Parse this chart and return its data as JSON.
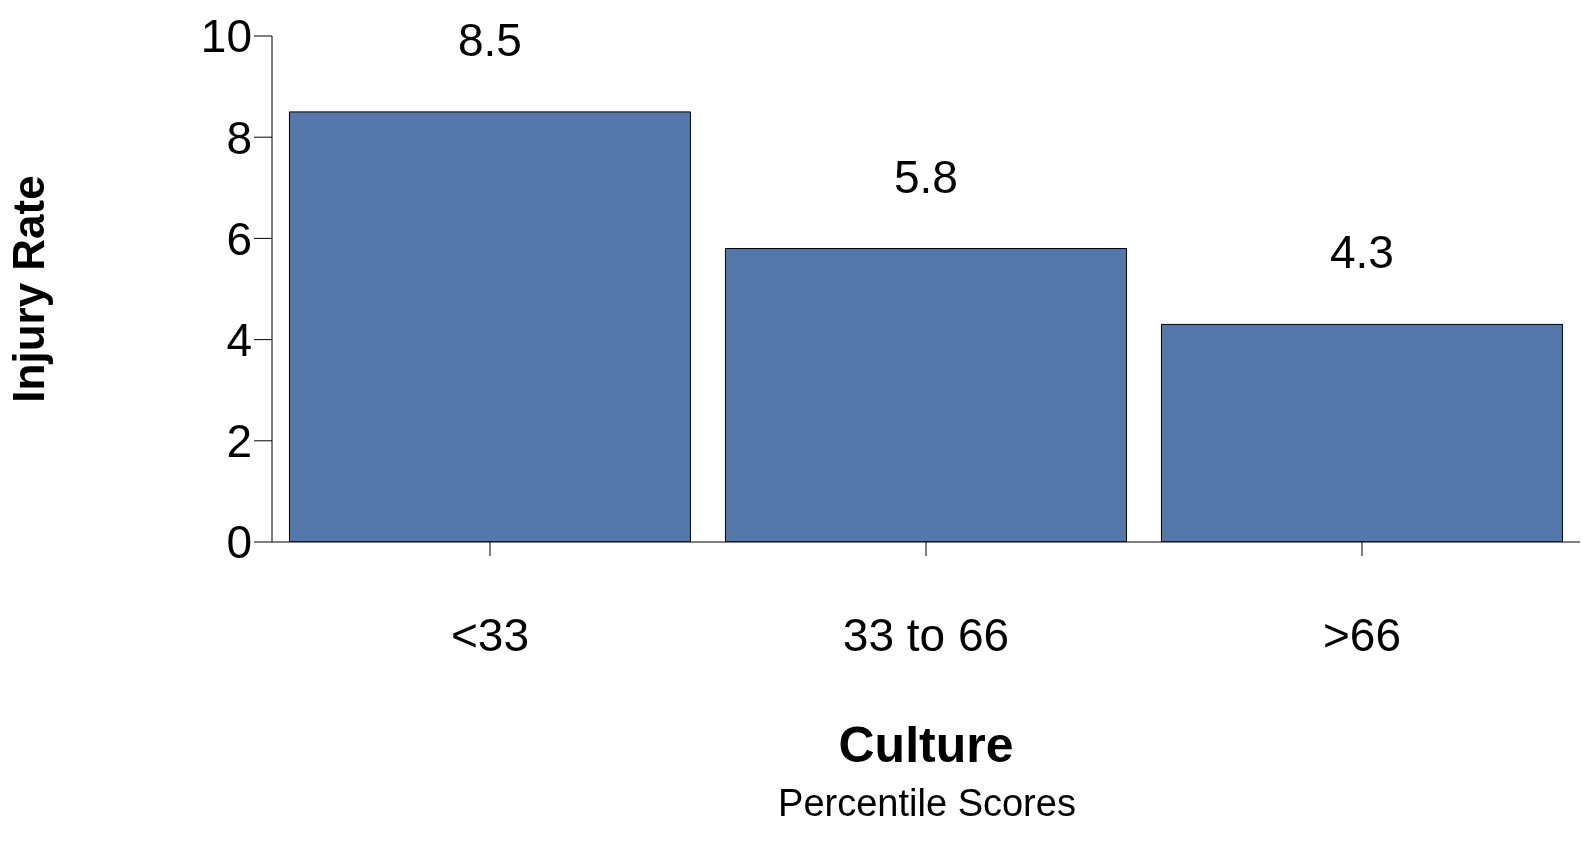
{
  "chart_data": {
    "type": "bar",
    "ylabel": "Injury Rate",
    "xlabel": "Culture",
    "annotations": [
      "Percentile Scores"
    ],
    "categories": [
      "<33",
      "33 to 66",
      ">66"
    ],
    "values": [
      8.5,
      5.8,
      4.3
    ],
    "color": "#5578aa",
    "ylim": [
      0,
      10
    ],
    "yticks": [
      0,
      2,
      4,
      6,
      8,
      10
    ],
    "data_labels": true,
    "grid": false,
    "legend": false
  }
}
